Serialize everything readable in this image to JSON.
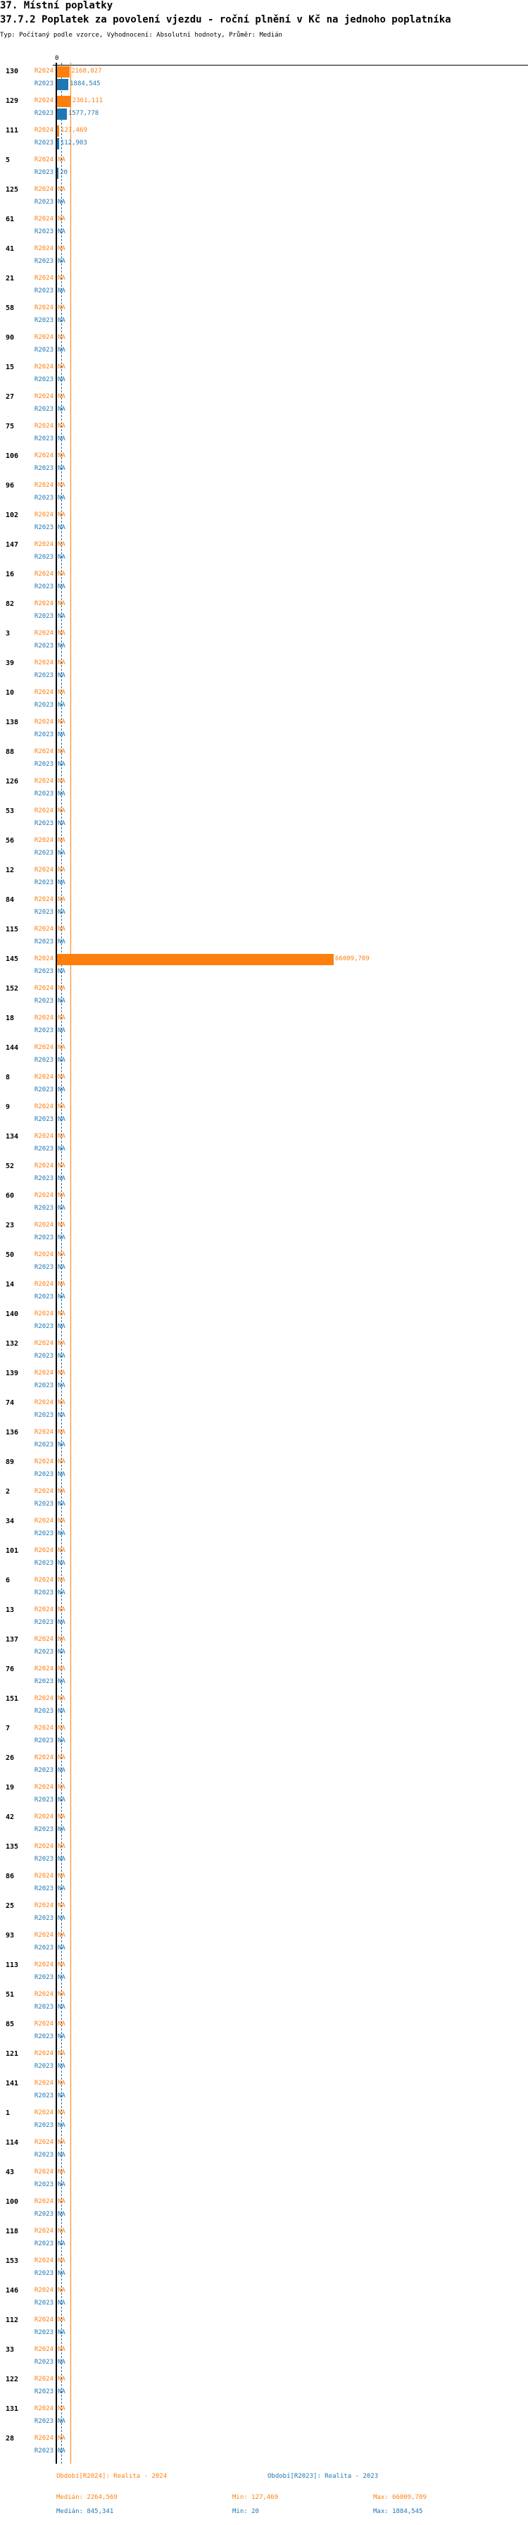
{
  "header": {
    "section": "37. Místní poplatky",
    "title": "37.7.2 Poplatek za povolení vjezdu  - roční plnění v Kč na jednoho poplatníka",
    "subtitle": "Typ: Počítaný podle vzorce, Vyhodnocení: Absolutní hodnoty, Průměr: Medián"
  },
  "chart_data": {
    "type": "bar",
    "orientation": "horizontal",
    "x_tick_labels": [
      "0"
    ],
    "colors": {
      "R2024": "#ff7f0e",
      "R2023": "#1f77b4"
    },
    "categories": [
      "130",
      "129",
      "111",
      "5",
      "125",
      "61",
      "41",
      "21",
      "58",
      "90",
      "15",
      "27",
      "75",
      "106",
      "96",
      "102",
      "147",
      "16",
      "82",
      "3",
      "39",
      "10",
      "138",
      "88",
      "126",
      "53",
      "56",
      "12",
      "84",
      "115",
      "145",
      "152",
      "18",
      "144",
      "8",
      "9",
      "134",
      "52",
      "60",
      "23",
      "50",
      "14",
      "140",
      "132",
      "139",
      "74",
      "136",
      "89",
      "2",
      "34",
      "101",
      "6",
      "13",
      "137",
      "76",
      "151",
      "7",
      "26",
      "19",
      "42",
      "135",
      "86",
      "25",
      "93",
      "113",
      "51",
      "85",
      "121",
      "141",
      "1",
      "114",
      "43",
      "100",
      "118",
      "153",
      "146",
      "112",
      "33",
      "122",
      "131",
      "28"
    ],
    "series": [
      {
        "name": "R2024",
        "labels": {
          "130": "2168,027",
          "129": "2361,111",
          "111": "127,469",
          "145": "66009,709"
        },
        "values": {
          "130": 2168.027,
          "129": 2361.111,
          "111": 127.469,
          "145": 66009.709
        }
      },
      {
        "name": "R2023",
        "labels": {
          "130": "1884,545",
          "129": "1577,778",
          "111": "112,903",
          "5": "20"
        },
        "values": {
          "130": 1884.545,
          "129": 1577.778,
          "111": 112.903,
          "5": 20
        }
      }
    ],
    "na_label": "NA",
    "medians": {
      "R2024": 2264.569,
      "R2023": 845.341
    },
    "legend": [
      {
        "series": "R2024",
        "label": "Období[R2024]: Realita - 2024",
        "median": "Medián: 2264,569",
        "min": "Min: 127,469",
        "max": "Max: 66009,709"
      },
      {
        "series": "R2023",
        "label": "Období[R2023]: Realita - 2023",
        "median": "Medián: 845,341",
        "min": "Min: 20",
        "max": "Max: 1884,545"
      }
    ],
    "legend_placement": "bottom"
  }
}
